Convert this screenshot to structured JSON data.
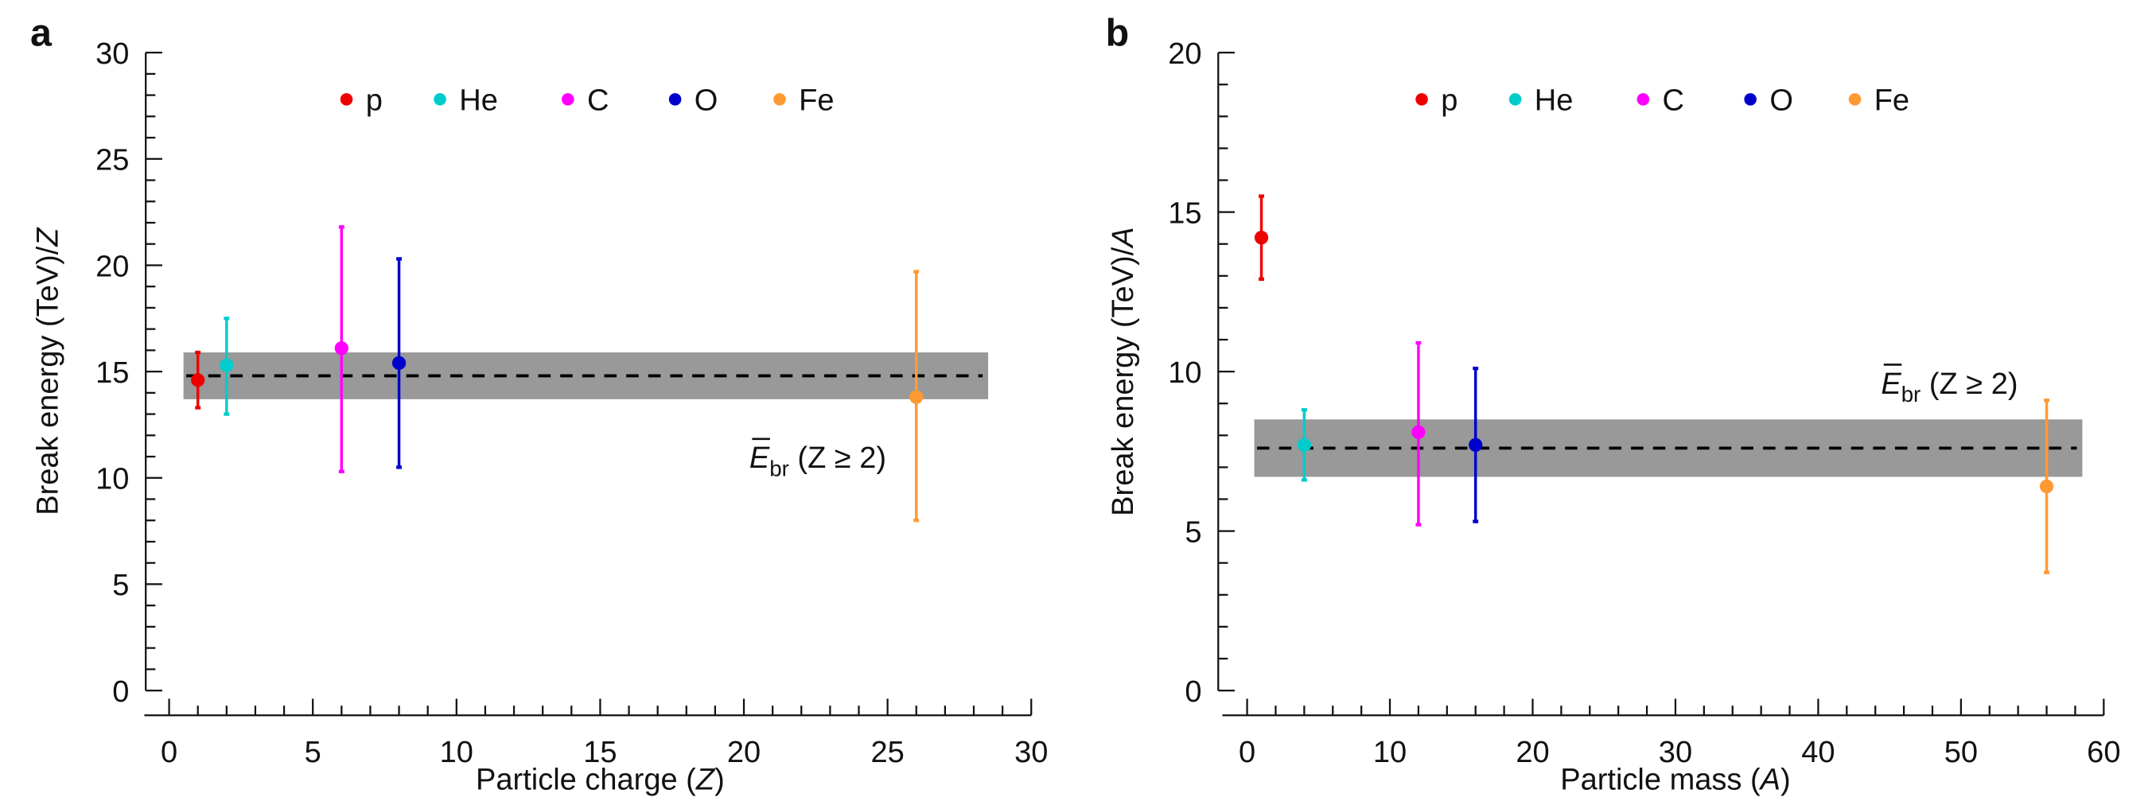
{
  "chart_data": [
    {
      "type": "scatter",
      "panel_label": "a",
      "xlabel_prefix": "Particle charge (",
      "xlabel_var": "Z",
      "xlabel_suffix": ")",
      "ylabel_prefix": "Break energy (TeV)/",
      "ylabel_var": "Z",
      "xlim": [
        -1,
        30
      ],
      "ylim": [
        0,
        30
      ],
      "xticks": [
        0,
        5,
        10,
        15,
        20,
        25,
        30
      ],
      "xminor_step": 1,
      "yticks": [
        0,
        5,
        10,
        15,
        20,
        25,
        30
      ],
      "yminor_step": 1,
      "legend_position": "top-center",
      "series": [
        {
          "name": "p",
          "color": "#ee0000",
          "x": 1,
          "y": 14.6,
          "yerr_high": 15.9,
          "yerr_low": 13.3
        },
        {
          "name": "He",
          "color": "#00cccc",
          "x": 2,
          "y": 15.3,
          "yerr_high": 17.5,
          "yerr_low": 13.0
        },
        {
          "name": "C",
          "color": "#ff00ff",
          "x": 6,
          "y": 16.1,
          "yerr_high": 21.8,
          "yerr_low": 10.3
        },
        {
          "name": "O",
          "color": "#0000cc",
          "x": 8,
          "y": 15.4,
          "yerr_high": 20.3,
          "yerr_low": 10.5
        },
        {
          "name": "Fe",
          "color": "#ff9933",
          "x": 26,
          "y": 13.8,
          "yerr_high": 19.7,
          "yerr_low": 8.0
        }
      ],
      "mean_band": {
        "label_main": "E",
        "label_sub": "br",
        "label_cond": " (Z ≥ 2)",
        "value": 14.8,
        "low": 13.7,
        "high": 15.9,
        "x_from": 0.5,
        "x_to": 28.5,
        "color": "#999999"
      }
    },
    {
      "type": "scatter",
      "panel_label": "b",
      "xlabel_prefix": "Particle mass (",
      "xlabel_var": "A",
      "xlabel_suffix": ")",
      "ylabel_prefix": "Break energy (TeV)/",
      "ylabel_var": "A",
      "xlim": [
        -2,
        60
      ],
      "ylim": [
        0,
        20
      ],
      "xticks": [
        0,
        10,
        20,
        30,
        40,
        50,
        60
      ],
      "xminor_step": 2,
      "yticks": [
        0,
        5,
        10,
        15,
        20
      ],
      "yminor_step": 1,
      "legend_position": "top-center",
      "series": [
        {
          "name": "p",
          "color": "#ee0000",
          "x": 1,
          "y": 14.2,
          "yerr_high": 15.5,
          "yerr_low": 12.9
        },
        {
          "name": "He",
          "color": "#00cccc",
          "x": 4,
          "y": 7.7,
          "yerr_high": 8.8,
          "yerr_low": 6.6
        },
        {
          "name": "C",
          "color": "#ff00ff",
          "x": 12,
          "y": 8.1,
          "yerr_high": 10.9,
          "yerr_low": 5.2
        },
        {
          "name": "O",
          "color": "#0000cc",
          "x": 16,
          "y": 7.7,
          "yerr_high": 10.1,
          "yerr_low": 5.3
        },
        {
          "name": "Fe",
          "color": "#ff9933",
          "x": 56,
          "y": 6.4,
          "yerr_high": 9.1,
          "yerr_low": 3.7
        }
      ],
      "mean_band": {
        "label_main": "E",
        "label_sub": "br",
        "label_cond": " (Z ≥ 2)",
        "value": 7.6,
        "low": 6.7,
        "high": 8.5,
        "x_from": 0.5,
        "x_to": 58.5,
        "color": "#999999"
      }
    }
  ]
}
